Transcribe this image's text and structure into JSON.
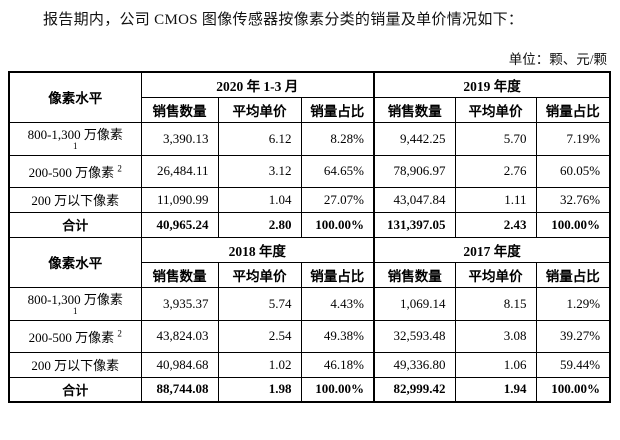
{
  "page": {
    "title": "报告期内，公司 CMOS 图像传感器按像素分类的销量及单价情况如下：",
    "unit_note": "单位：颗、元/颗"
  },
  "table": {
    "corner_header": "像素水平",
    "sub_headers": [
      "销售数量",
      "平均单价",
      "销量占比"
    ],
    "sections": [
      {
        "period_left": "2020 年 1-3 月",
        "period_right": "2019 年度",
        "rows": [
          {
            "label": "800-1,300 万像素",
            "note": "1",
            "values": [
              "3,390.13",
              "6.12",
              "8.28%",
              "9,442.25",
              "5.70",
              "7.19%"
            ]
          },
          {
            "label": "200-500 万像素",
            "note": "2",
            "values": [
              "26,484.11",
              "3.12",
              "64.65%",
              "78,906.97",
              "2.76",
              "60.05%"
            ]
          },
          {
            "label": "200 万以下像素",
            "note": "",
            "values": [
              "11,090.99",
              "1.04",
              "27.07%",
              "43,047.84",
              "1.11",
              "32.76%"
            ]
          },
          {
            "label": "合计",
            "note": "",
            "values": [
              "40,965.24",
              "2.80",
              "100.00%",
              "131,397.05",
              "2.43",
              "100.00%"
            ]
          }
        ]
      },
      {
        "period_left": "2018 年度",
        "period_right": "2017 年度",
        "rows": [
          {
            "label": "800-1,300 万像素",
            "note": "1",
            "values": [
              "3,935.37",
              "5.74",
              "4.43%",
              "1,069.14",
              "8.15",
              "1.29%"
            ]
          },
          {
            "label": "200-500 万像素",
            "note": "2",
            "values": [
              "43,824.03",
              "2.54",
              "49.38%",
              "32,593.48",
              "3.08",
              "39.27%"
            ]
          },
          {
            "label": "200 万以下像素",
            "note": "",
            "values": [
              "40,984.68",
              "1.02",
              "46.18%",
              "49,336.80",
              "1.06",
              "59.44%"
            ]
          },
          {
            "label": "合计",
            "note": "",
            "values": [
              "88,744.08",
              "1.98",
              "100.00%",
              "82,999.42",
              "1.94",
              "100.00%"
            ]
          }
        ]
      }
    ]
  }
}
